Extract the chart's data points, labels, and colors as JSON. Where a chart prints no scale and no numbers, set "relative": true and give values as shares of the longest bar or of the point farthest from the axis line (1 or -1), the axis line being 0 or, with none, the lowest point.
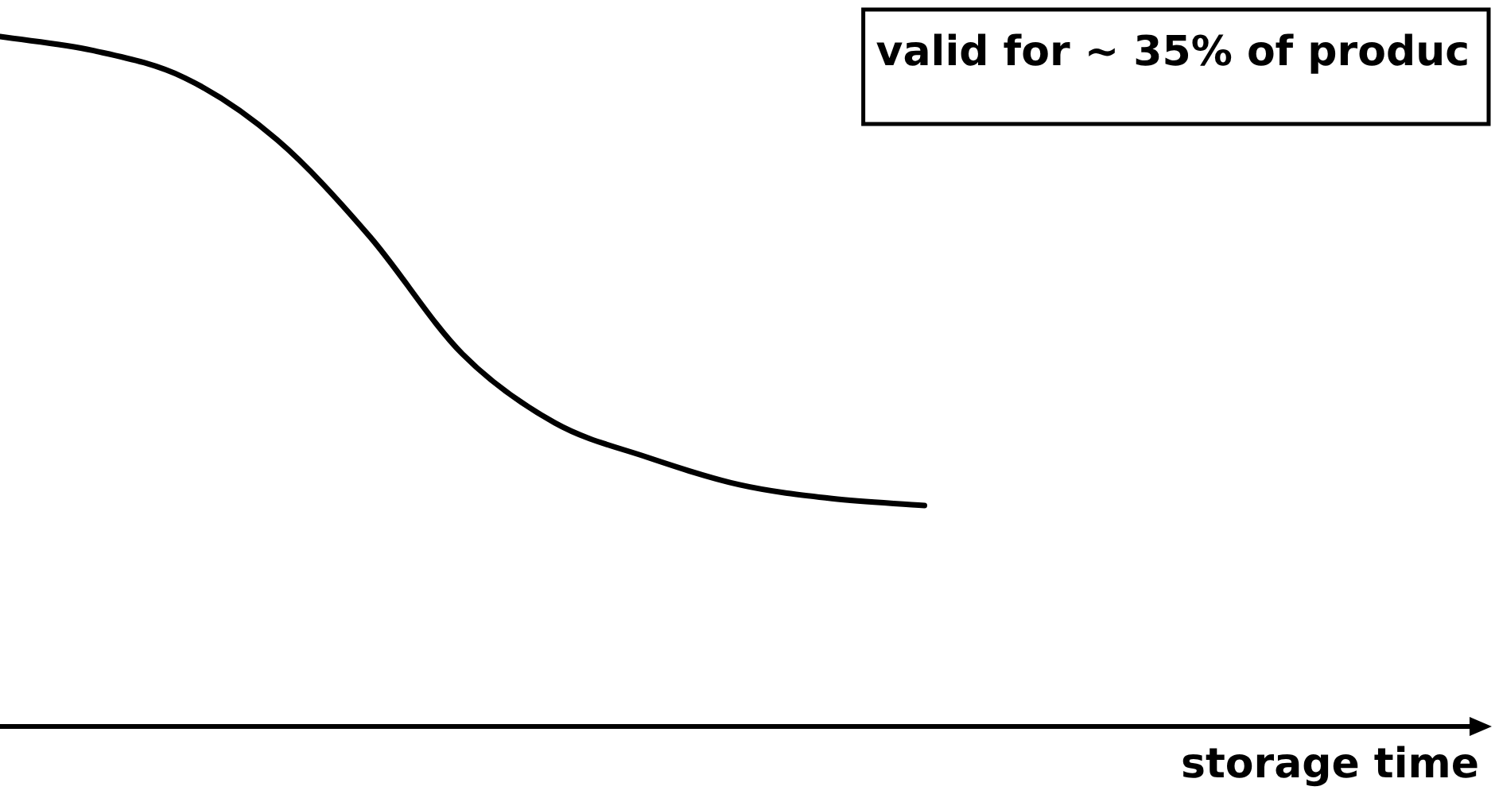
{
  "chart_data": {
    "type": "line",
    "relative": true,
    "xlabel": "storage time",
    "annotations": [
      "valid for ~ 35% of produc"
    ],
    "categories": [
      null,
      null,
      null,
      null,
      null,
      null,
      null,
      null,
      null,
      null,
      null,
      null,
      null,
      null,
      null,
      null,
      null
    ],
    "values": [
      1,
      0.98,
      0.94,
      0.85,
      0.71,
      0.54,
      0.44,
      0.39,
      0.35,
      0.33,
      0.32,
      null,
      null,
      null,
      null,
      null,
      null
    ],
    "color": "#000000",
    "grid": false,
    "legend": false,
    "marker": "none",
    "line_style": "solid"
  }
}
